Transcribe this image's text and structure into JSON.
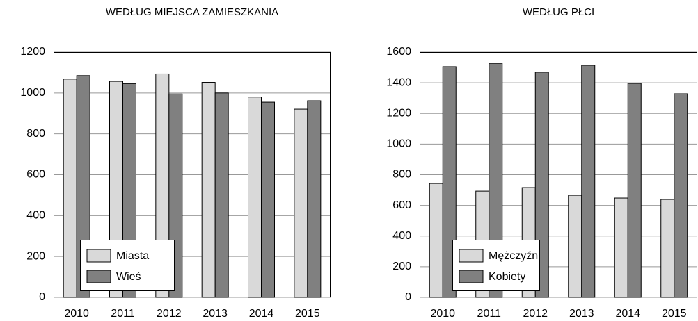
{
  "chart_data": [
    {
      "type": "bar",
      "title": "WEDŁUG MIEJSCA ZAMIESZKANIA",
      "categories": [
        "2010",
        "2011",
        "2012",
        "2013",
        "2014",
        "2015"
      ],
      "series": [
        {
          "name": "Miasta",
          "color": "#d9d9d9",
          "values": [
            1068,
            1057,
            1093,
            1052,
            980,
            921
          ]
        },
        {
          "name": "Wieś",
          "color": "#808080",
          "values": [
            1085,
            1046,
            995,
            1000,
            955,
            962
          ]
        }
      ],
      "ylim": [
        0,
        1200
      ],
      "yticks": [
        0,
        200,
        400,
        600,
        800,
        1000,
        1200
      ],
      "grid": true,
      "legend": "lower left"
    },
    {
      "type": "bar",
      "title": "WEDŁUG PŁCI",
      "categories": [
        "2010",
        "2011",
        "2012",
        "2013",
        "2014",
        "2015"
      ],
      "series": [
        {
          "name": "Mężczyźni",
          "color": "#d9d9d9",
          "values": [
            743,
            693,
            716,
            666,
            648,
            639
          ]
        },
        {
          "name": "Kobiety",
          "color": "#808080",
          "values": [
            1505,
            1527,
            1469,
            1514,
            1396,
            1328
          ]
        }
      ],
      "ylim": [
        0,
        1600
      ],
      "yticks": [
        0,
        200,
        400,
        600,
        800,
        1000,
        1200,
        1400,
        1600
      ],
      "grid": true,
      "legend": "lower left"
    }
  ]
}
